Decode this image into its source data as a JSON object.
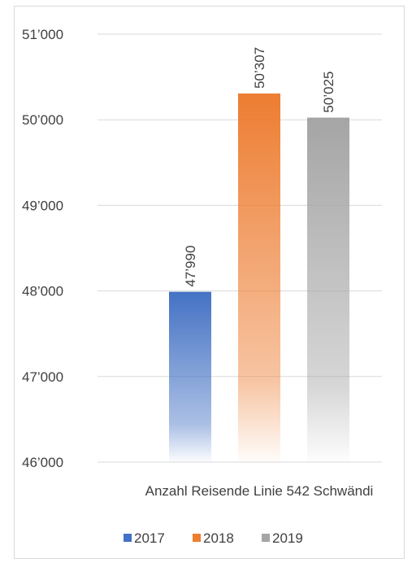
{
  "chart_data": {
    "type": "bar",
    "categories": [
      "Anzahl Reisende Linie 542 Schwändi"
    ],
    "series": [
      {
        "name": "2017",
        "values": [
          47990
        ],
        "label": "47’990",
        "color": "#4472c4"
      },
      {
        "name": "2018",
        "values": [
          50307
        ],
        "label": "50’307",
        "color": "#ed7d31"
      },
      {
        "name": "2019",
        "values": [
          50025
        ],
        "label": "50’025",
        "color": "#a5a5a5"
      }
    ],
    "title": "",
    "xlabel": "",
    "ylabel": "",
    "ylim": [
      46000,
      51000
    ],
    "yticks": [
      {
        "value": 46000,
        "label": "46’000"
      },
      {
        "value": 47000,
        "label": "47’000"
      },
      {
        "value": 48000,
        "label": "48’000"
      },
      {
        "value": 49000,
        "label": "49’000"
      },
      {
        "value": 50000,
        "label": "50’000"
      },
      {
        "value": 51000,
        "label": "51’000"
      }
    ],
    "grid": true,
    "legend": "bottom",
    "bar_style": "gradient-fade-to-bottom"
  }
}
